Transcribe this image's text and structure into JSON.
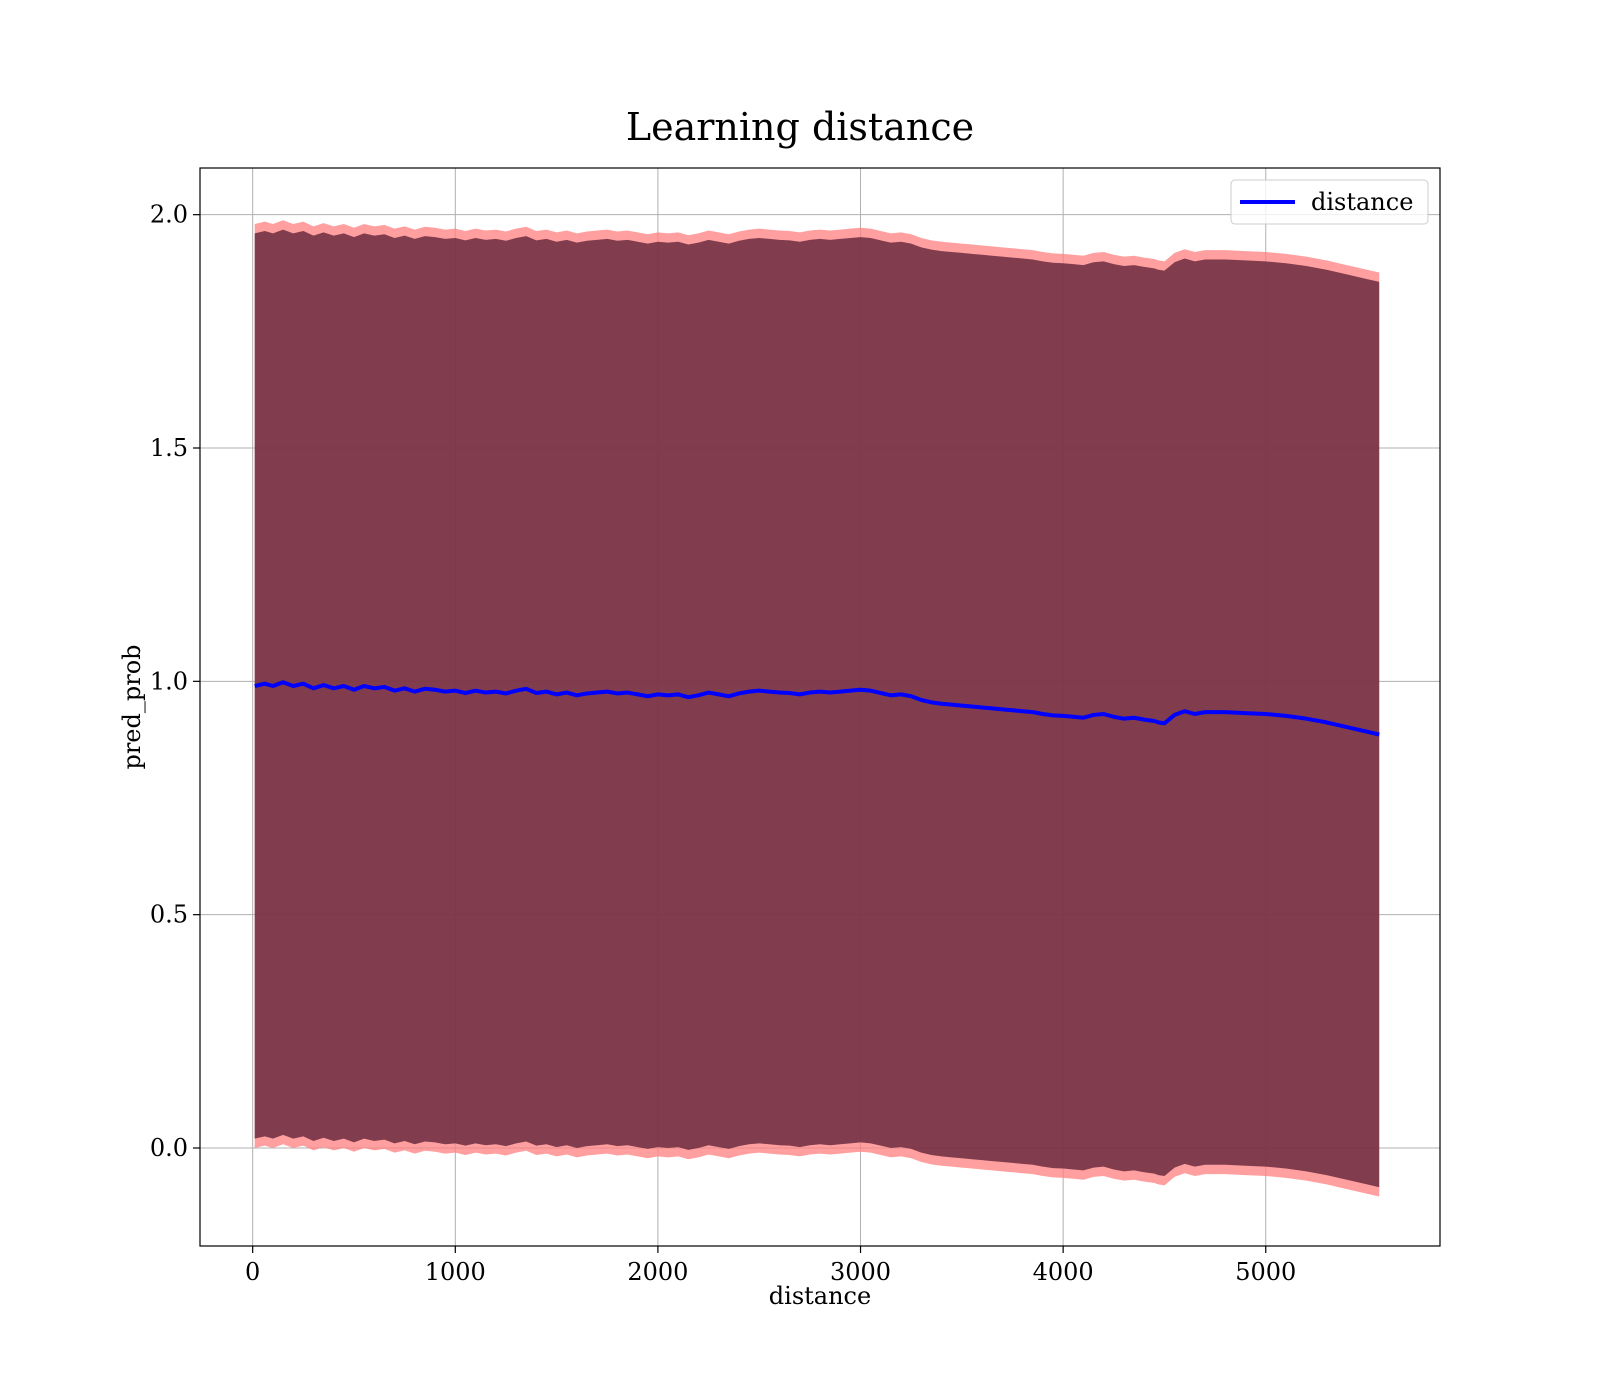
{
  "chart_data": {
    "type": "line",
    "title": "Learning distance",
    "xlabel": "distance",
    "ylabel": "pred_prob",
    "xlim": [
      -260,
      5860
    ],
    "ylim": [
      -0.21,
      2.1
    ],
    "xticks": [
      0,
      1000,
      2000,
      3000,
      4000,
      5000
    ],
    "xtick_labels": [
      "0",
      "1000",
      "2000",
      "3000",
      "4000",
      "5000"
    ],
    "yticks": [
      0.0,
      0.5,
      1.0,
      1.5,
      2.0
    ],
    "ytick_labels": [
      "0.0",
      "0.5",
      "1.0",
      "1.5",
      "2.0"
    ],
    "grid": true,
    "legend": {
      "position": "top-right",
      "entries": [
        "distance"
      ]
    },
    "colors": {
      "line": "#0000ff",
      "band_outer": "#ff7f7f",
      "band_inner": "#6b2a3e",
      "grid": "#b0b0b0"
    },
    "series": [
      {
        "name": "distance",
        "x": [
          10,
          60,
          100,
          150,
          200,
          250,
          300,
          350,
          400,
          450,
          500,
          550,
          600,
          650,
          700,
          750,
          800,
          850,
          900,
          950,
          1000,
          1050,
          1100,
          1150,
          1200,
          1250,
          1300,
          1350,
          1400,
          1450,
          1500,
          1550,
          1600,
          1650,
          1700,
          1750,
          1800,
          1850,
          1900,
          1950,
          2000,
          2050,
          2100,
          2150,
          2200,
          2250,
          2300,
          2350,
          2400,
          2450,
          2500,
          2550,
          2600,
          2650,
          2700,
          2750,
          2800,
          2850,
          2900,
          2950,
          3000,
          3050,
          3100,
          3150,
          3200,
          3250,
          3300,
          3350,
          3400,
          3450,
          3500,
          3550,
          3600,
          3650,
          3700,
          3750,
          3800,
          3850,
          3900,
          3950,
          4000,
          4050,
          4100,
          4150,
          4200,
          4250,
          4300,
          4350,
          4400,
          4450,
          4470,
          4500,
          4550,
          4600,
          4650,
          4700,
          4800,
          4900,
          5000,
          5100,
          5200,
          5300,
          5400,
          5500,
          5560
        ],
        "y": [
          0.99,
          0.995,
          0.99,
          0.998,
          0.99,
          0.995,
          0.985,
          0.992,
          0.985,
          0.99,
          0.982,
          0.99,
          0.985,
          0.988,
          0.98,
          0.985,
          0.978,
          0.984,
          0.982,
          0.978,
          0.98,
          0.975,
          0.98,
          0.976,
          0.978,
          0.974,
          0.98,
          0.984,
          0.975,
          0.978,
          0.972,
          0.976,
          0.97,
          0.974,
          0.976,
          0.978,
          0.974,
          0.976,
          0.972,
          0.968,
          0.972,
          0.97,
          0.972,
          0.966,
          0.97,
          0.976,
          0.972,
          0.968,
          0.974,
          0.978,
          0.98,
          0.978,
          0.976,
          0.975,
          0.972,
          0.976,
          0.978,
          0.976,
          0.978,
          0.98,
          0.982,
          0.98,
          0.975,
          0.97,
          0.972,
          0.968,
          0.96,
          0.955,
          0.952,
          0.95,
          0.948,
          0.946,
          0.944,
          0.942,
          0.94,
          0.938,
          0.936,
          0.934,
          0.93,
          0.927,
          0.926,
          0.924,
          0.922,
          0.928,
          0.93,
          0.924,
          0.92,
          0.922,
          0.918,
          0.915,
          0.912,
          0.91,
          0.928,
          0.936,
          0.93,
          0.934,
          0.934,
          0.932,
          0.93,
          0.926,
          0.92,
          0.912,
          0.902,
          0.892,
          0.886
        ]
      }
    ],
    "band": {
      "offset_outer": 0.99,
      "offset_inner": 0.97
    }
  }
}
